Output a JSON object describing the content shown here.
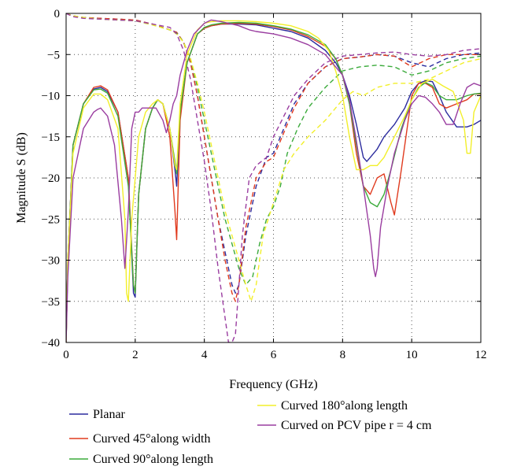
{
  "chart_data": {
    "type": "line",
    "xlabel": "Frequency (GHz)",
    "ylabel": "Magnitude S (dB)",
    "xlim": [
      0,
      12
    ],
    "ylim": [
      -40,
      0
    ],
    "xticks": [
      0,
      2,
      4,
      6,
      8,
      10,
      12
    ],
    "yticks": [
      0,
      -5,
      -10,
      -15,
      -20,
      -25,
      -30,
      -35,
      -40
    ],
    "grid": true,
    "legend_position": "bottom",
    "series": [
      {
        "name": "Planar",
        "color": "#2b2b9e",
        "style": "solid",
        "x": [
          0,
          0.05,
          0.2,
          0.5,
          0.8,
          1.0,
          1.2,
          1.5,
          1.8,
          1.95,
          2.0,
          2.1,
          2.3,
          2.5,
          2.65,
          2.8,
          3.0,
          3.15,
          3.2,
          3.3,
          3.5,
          3.8,
          4.0,
          4.2,
          4.5,
          5.0,
          5.5,
          6.0,
          6.5,
          7.0,
          7.5,
          7.8,
          8.0,
          8.2,
          8.4,
          8.6,
          8.7,
          8.8,
          9.0,
          9.2,
          9.5,
          9.8,
          10.0,
          10.2,
          10.4,
          10.6,
          10.8,
          11.0,
          11.3,
          11.6,
          11.8,
          12.0
        ],
        "y": [
          -40,
          -30,
          -16,
          -11,
          -9.2,
          -9,
          -9.5,
          -12,
          -20,
          -34,
          -34.5,
          -22,
          -14,
          -11.5,
          -10.5,
          -11,
          -14,
          -19,
          -21,
          -12,
          -6,
          -2.5,
          -1.8,
          -1.5,
          -1.3,
          -1.3,
          -1.4,
          -1.8,
          -2.2,
          -3,
          -4.5,
          -6,
          -7.5,
          -10,
          -13.5,
          -17.5,
          -18,
          -17.5,
          -16.5,
          -15,
          -13.5,
          -11.5,
          -9.5,
          -8.5,
          -8.2,
          -8.3,
          -10,
          -12,
          -13.8,
          -13.8,
          -13.5,
          -13
        ]
      },
      {
        "name": "Curved 45°along width",
        "color": "#e03b1f",
        "style": "solid",
        "x": [
          0,
          0.05,
          0.2,
          0.5,
          0.8,
          1.0,
          1.2,
          1.5,
          1.8,
          1.95,
          2.0,
          2.1,
          2.3,
          2.5,
          2.65,
          2.8,
          3.0,
          3.15,
          3.2,
          3.3,
          3.5,
          3.8,
          4.0,
          4.2,
          4.5,
          5.0,
          5.5,
          6.0,
          6.5,
          7.0,
          7.5,
          7.8,
          8.0,
          8.2,
          8.4,
          8.6,
          8.8,
          9.0,
          9.2,
          9.4,
          9.5,
          9.7,
          9.9,
          10.0,
          10.2,
          10.4,
          10.6,
          10.8,
          11.0,
          11.3,
          11.6,
          11.8,
          12.0
        ],
        "y": [
          -40,
          -30,
          -16,
          -11,
          -9,
          -8.8,
          -9.3,
          -12,
          -20,
          -33,
          -34,
          -22,
          -14,
          -11.5,
          -10.5,
          -11,
          -15,
          -24,
          -27.5,
          -13,
          -6,
          -2.5,
          -1.8,
          -1.5,
          -1.3,
          -1.2,
          -1.3,
          -1.6,
          -2,
          -2.8,
          -4,
          -5.5,
          -7.5,
          -11,
          -17,
          -21,
          -22,
          -20,
          -19.5,
          -23,
          -24.5,
          -19,
          -13,
          -10,
          -8.5,
          -8.5,
          -9,
          -11,
          -11.5,
          -11,
          -10.5,
          -9.8,
          -9.8
        ]
      },
      {
        "name": "Curved 90°along length",
        "color": "#3cab3c",
        "style": "solid",
        "x": [
          0,
          0.05,
          0.2,
          0.5,
          0.8,
          1.0,
          1.2,
          1.5,
          1.8,
          1.95,
          2.0,
          2.1,
          2.3,
          2.5,
          2.65,
          2.8,
          3.0,
          3.15,
          3.2,
          3.3,
          3.5,
          3.8,
          4.0,
          4.2,
          4.5,
          5.0,
          5.5,
          6.0,
          6.5,
          7.0,
          7.5,
          7.8,
          8.0,
          8.2,
          8.4,
          8.6,
          8.8,
          9.0,
          9.2,
          9.4,
          9.7,
          10.0,
          10.2,
          10.4,
          10.6,
          10.8,
          11.0,
          11.3,
          11.6,
          11.8,
          12.0
        ],
        "y": [
          -40,
          -30,
          -16,
          -11,
          -9.3,
          -9.2,
          -9.7,
          -12.5,
          -21,
          -33,
          -34,
          -22,
          -14,
          -11.5,
          -10.5,
          -11,
          -14,
          -18,
          -19.5,
          -12,
          -6,
          -2.5,
          -1.7,
          -1.4,
          -1.2,
          -1.1,
          -1.2,
          -1.5,
          -1.9,
          -2.6,
          -3.8,
          -5.5,
          -7.5,
          -11,
          -16,
          -21,
          -23,
          -23.5,
          -22,
          -19,
          -14,
          -10.5,
          -9,
          -8.4,
          -8.8,
          -10,
          -10.5,
          -10.5,
          -10,
          -9.8,
          -9.7
        ]
      },
      {
        "name": "Curved 180°along length",
        "color": "#f2ef2a",
        "style": "solid",
        "x": [
          0,
          0.05,
          0.2,
          0.5,
          0.8,
          1.0,
          1.2,
          1.5,
          1.7,
          1.75,
          1.8,
          1.9,
          2.1,
          2.3,
          2.5,
          2.65,
          2.8,
          3.0,
          3.15,
          3.2,
          3.3,
          3.5,
          3.8,
          4.0,
          4.2,
          4.5,
          5.0,
          5.5,
          6.0,
          6.5,
          7.0,
          7.3,
          7.6,
          7.8,
          8.0,
          8.2,
          8.4,
          8.6,
          8.8,
          9.0,
          9.2,
          9.5,
          9.8,
          10.0,
          10.3,
          10.6,
          10.9,
          11.2,
          11.5,
          11.6,
          11.7,
          11.8,
          12.0
        ],
        "y": [
          -40,
          -30,
          -17,
          -11.5,
          -9.8,
          -9.8,
          -10.5,
          -14,
          -25,
          -34,
          -35,
          -25,
          -15,
          -12,
          -11,
          -10.5,
          -11,
          -14,
          -18.5,
          -19,
          -11,
          -5,
          -2,
          -1.2,
          -1,
          -0.9,
          -0.9,
          -1,
          -1.2,
          -1.5,
          -2.2,
          -3,
          -4.5,
          -7,
          -10,
          -15,
          -19,
          -19,
          -18.5,
          -18.5,
          -17.5,
          -15,
          -12.5,
          -10.5,
          -8.5,
          -8,
          -8.8,
          -9.5,
          -13,
          -17,
          -17,
          -12,
          -10
        ]
      },
      {
        "name": "Curved on PCV pipe r = 4 cm",
        "color": "#9a3da0",
        "style": "solid",
        "x": [
          0,
          0.05,
          0.2,
          0.5,
          0.8,
          0.9,
          1.0,
          1.2,
          1.4,
          1.6,
          1.7,
          1.8,
          1.9,
          2.0,
          2.1,
          2.2,
          2.4,
          2.6,
          2.8,
          2.9,
          3.0,
          3.1,
          3.2,
          3.3,
          3.5,
          3.7,
          4.0,
          4.2,
          4.5,
          5.0,
          5.3,
          5.5,
          6.0,
          6.5,
          7.0,
          7.5,
          8.0,
          8.2,
          8.4,
          8.6,
          8.8,
          8.9,
          8.95,
          9.0,
          9.1,
          9.3,
          9.5,
          9.8,
          10.0,
          10.2,
          10.4,
          10.6,
          10.8,
          11.0,
          11.2,
          11.4,
          11.6,
          11.8,
          12.0
        ],
        "y": [
          -40,
          -32,
          -20,
          -14,
          -12,
          -11.7,
          -11.5,
          -12.5,
          -16,
          -25,
          -31,
          -24,
          -14,
          -12,
          -12,
          -11.5,
          -11.5,
          -11.5,
          -13,
          -14.5,
          -13,
          -11,
          -10,
          -7.5,
          -4.5,
          -2.5,
          -1.2,
          -0.8,
          -1,
          -1.5,
          -2,
          -2.2,
          -2.5,
          -3,
          -3.8,
          -5,
          -7.5,
          -10.5,
          -15.5,
          -21,
          -27,
          -31,
          -32,
          -31,
          -26,
          -21,
          -17,
          -13,
          -11,
          -10,
          -10.2,
          -11,
          -12,
          -13.5,
          -13.5,
          -11,
          -9,
          -8.5,
          -8.8
        ]
      },
      {
        "name": "",
        "color": "#2b2b9e",
        "style": "dashed",
        "x": [
          0,
          0.2,
          0.5,
          1.0,
          1.5,
          2.0,
          2.5,
          3.0,
          3.2,
          3.4,
          3.6,
          3.8,
          4.0,
          4.2,
          4.4,
          4.6,
          4.8,
          4.9,
          5.0,
          5.2,
          5.5,
          5.8,
          6.0,
          6.3,
          6.6,
          7.0,
          7.5,
          8.0,
          8.5,
          9.0,
          9.5,
          10.0,
          10.5,
          11.0,
          11.5,
          12.0
        ],
        "y": [
          0,
          -0.3,
          -0.5,
          -0.6,
          -0.7,
          -0.8,
          -1.3,
          -2,
          -2.3,
          -3.5,
          -6,
          -10,
          -15,
          -20,
          -25,
          -29,
          -33,
          -34,
          -33,
          -27,
          -21,
          -17.5,
          -17,
          -14,
          -11,
          -8.5,
          -6.5,
          -5.5,
          -5.3,
          -5,
          -5.2,
          -6,
          -6.5,
          -5.5,
          -5,
          -4.8
        ]
      },
      {
        "name": "",
        "color": "#e03b1f",
        "style": "dashed",
        "x": [
          0,
          0.2,
          0.5,
          1.0,
          1.5,
          2.0,
          2.5,
          3.0,
          3.2,
          3.4,
          3.6,
          3.8,
          4.0,
          4.2,
          4.4,
          4.6,
          4.8,
          4.9,
          5.0,
          5.2,
          5.5,
          5.8,
          6.0,
          6.3,
          6.6,
          7.0,
          7.5,
          8.0,
          8.5,
          9.0,
          9.5,
          10.0,
          10.5,
          11.0,
          11.5,
          12.0
        ],
        "y": [
          0,
          -0.3,
          -0.5,
          -0.6,
          -0.7,
          -0.8,
          -1.3,
          -2,
          -2.3,
          -3.5,
          -6,
          -10,
          -15,
          -20,
          -25,
          -30,
          -34,
          -35,
          -33,
          -26,
          -20,
          -18,
          -17.5,
          -14.5,
          -11.5,
          -8.5,
          -6.5,
          -5.5,
          -5.3,
          -5,
          -5.2,
          -6.5,
          -5.5,
          -5,
          -5,
          -5
        ]
      },
      {
        "name": "",
        "color": "#3cab3c",
        "style": "dashed",
        "x": [
          0,
          0.2,
          0.5,
          1.0,
          1.5,
          2.0,
          2.5,
          3.0,
          3.2,
          3.4,
          3.6,
          3.8,
          4.0,
          4.2,
          4.4,
          4.6,
          4.8,
          5.0,
          5.2,
          5.4,
          5.6,
          5.8,
          6.0,
          6.2,
          6.4,
          6.7,
          7.0,
          7.5,
          8.0,
          8.5,
          9.0,
          9.5,
          10.0,
          10.5,
          11.0,
          11.5,
          12.0
        ],
        "y": [
          0,
          -0.3,
          -0.5,
          -0.7,
          -0.8,
          -0.9,
          -1.4,
          -2,
          -2.4,
          -3.5,
          -5.5,
          -9,
          -13,
          -17,
          -21,
          -25,
          -28,
          -31,
          -33,
          -32,
          -28,
          -25,
          -23.5,
          -21,
          -17,
          -14,
          -11.5,
          -9,
          -7,
          -6.5,
          -6.3,
          -6.5,
          -7.5,
          -7,
          -6,
          -5.5,
          -5.2
        ]
      },
      {
        "name": "",
        "color": "#f2ef2a",
        "style": "dashed",
        "x": [
          0,
          0.2,
          0.5,
          1.0,
          1.5,
          2.0,
          2.5,
          3.0,
          3.2,
          3.4,
          3.6,
          3.8,
          4.0,
          4.2,
          4.4,
          4.6,
          4.8,
          5.0,
          5.2,
          5.35,
          5.5,
          5.7,
          6.0,
          6.3,
          6.6,
          7.0,
          7.5,
          8.0,
          8.3,
          8.6,
          9.0,
          9.5,
          10.0,
          10.5,
          11.0,
          11.5,
          12.0
        ],
        "y": [
          0,
          -0.3,
          -0.5,
          -0.7,
          -0.8,
          -0.9,
          -1.4,
          -2,
          -2.5,
          -3.5,
          -5.5,
          -8.5,
          -12,
          -16,
          -20,
          -24,
          -27,
          -30,
          -33,
          -35,
          -33,
          -27,
          -23,
          -19,
          -17,
          -15,
          -13,
          -10.5,
          -9.5,
          -10,
          -9,
          -8.5,
          -8.5,
          -8,
          -7,
          -6,
          -5.5
        ]
      },
      {
        "name": "",
        "color": "#9a3da0",
        "style": "dashed",
        "x": [
          0,
          0.2,
          0.5,
          1.0,
          1.5,
          2.0,
          2.5,
          3.0,
          3.2,
          3.4,
          3.6,
          3.8,
          4.0,
          4.2,
          4.4,
          4.6,
          4.7,
          4.8,
          4.9,
          5.0,
          5.1,
          5.3,
          5.5,
          5.8,
          6.0,
          6.3,
          6.6,
          7.0,
          7.5,
          8.0,
          8.5,
          9.0,
          9.5,
          10.0,
          10.5,
          11.0,
          11.5,
          12.0
        ],
        "y": [
          0,
          -0.4,
          -0.6,
          -0.7,
          -0.8,
          -0.9,
          -1.3,
          -1.7,
          -2.5,
          -4.5,
          -8,
          -13,
          -18,
          -24,
          -31,
          -37,
          -40,
          -40,
          -39,
          -33,
          -27,
          -20,
          -18.5,
          -17.5,
          -15,
          -12.5,
          -10,
          -8,
          -6,
          -5.2,
          -5,
          -4.8,
          -4.7,
          -5,
          -5.2,
          -5,
          -4.5,
          -4.3
        ]
      }
    ],
    "legend": [
      "Planar",
      "Curved 45°along width",
      "Curved 90°along length",
      "Curved 180°along length",
      "Curved on PCV pipe r = 4 cm"
    ]
  }
}
